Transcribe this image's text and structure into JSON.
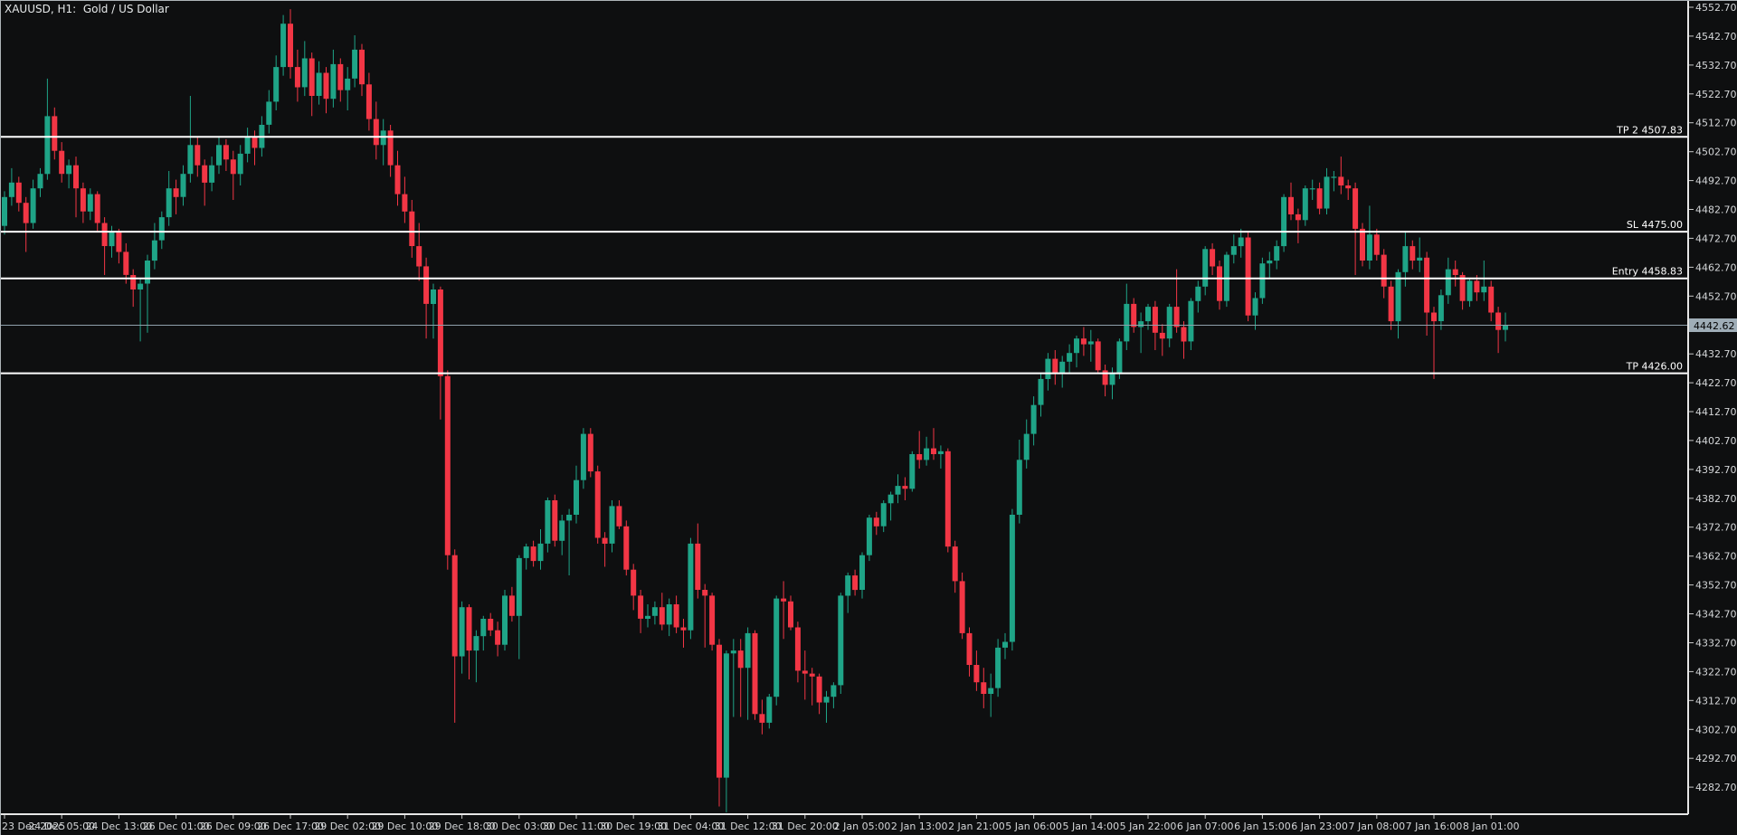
{
  "header": {
    "title": "XAUUSD, H1:  Gold / US Dollar"
  },
  "colors": {
    "background": "#0e0f10",
    "bull": "#1fa487",
    "bear": "#f23645",
    "level_line": "#ffffff",
    "level_text": "#ffffff",
    "current_line": "#8fa0ab",
    "current_badge_bg": "#9fadb7",
    "current_badge_text": "#000000",
    "axis_text": "#d4d6d8",
    "axis_tick": "#c8c8c8",
    "separator": "#e6e6e6",
    "window_border": "#aeb4b8"
  },
  "current_price": {
    "value": 4442.62,
    "label": "4442.62"
  },
  "price_axis": {
    "ticks": [
      4552.7,
      4542.7,
      4532.7,
      4522.7,
      4512.7,
      4502.7,
      4492.7,
      4482.7,
      4472.7,
      4462.7,
      4452.7,
      4442.7,
      4432.7,
      4422.7,
      4412.7,
      4402.7,
      4392.7,
      4382.7,
      4372.7,
      4362.7,
      4352.7,
      4342.7,
      4332.7,
      4322.7,
      4312.7,
      4302.7,
      4292.7,
      4282.7
    ]
  },
  "time_axis": {
    "labels": [
      "23 Dec 2025",
      "24 Dec 05:00",
      "24 Dec 13:00",
      "26 Dec 01:00",
      "26 Dec 09:00",
      "26 Dec 17:00",
      "29 Dec 02:00",
      "29 Dec 10:00",
      "29 Dec 18:00",
      "30 Dec 03:00",
      "30 Dec 11:00",
      "30 Dec 19:00",
      "31 Dec 04:00",
      "31 Dec 12:00",
      "31 Dec 20:00",
      "2 Jan 05:00",
      "2 Jan 13:00",
      "2 Jan 21:00",
      "5 Jan 06:00",
      "5 Jan 14:00",
      "5 Jan 22:00",
      "6 Jan 07:00",
      "6 Jan 15:00",
      "6 Jan 23:00",
      "7 Jan 08:00",
      "7 Jan 16:00",
      "8 Jan 01:00"
    ]
  },
  "chart_data": {
    "type": "candlestick",
    "symbol": "XAUUSD",
    "timeframe": "H1",
    "description": "Gold / US Dollar",
    "title": "XAUUSD, H1:  Gold / US Dollar",
    "ylim": [
      4270,
      4556
    ],
    "grid": false,
    "levels": [
      {
        "name": "TP 2",
        "price": 4507.83,
        "label": "TP 2 4507.83"
      },
      {
        "name": "SL",
        "price": 4475.0,
        "label": "SL 4475.00"
      },
      {
        "name": "Entry",
        "price": 4458.83,
        "label": "Entry 4458.83"
      },
      {
        "name": "TP",
        "price": 4426.0,
        "label": "TP 4426.00"
      }
    ],
    "current_price": 4442.62,
    "candles": [
      [
        4477,
        4489,
        4474,
        4487
      ],
      [
        4487,
        4497,
        4484,
        4492
      ],
      [
        4492,
        4494,
        4482,
        4485
      ],
      [
        4485,
        4487,
        4468,
        4478
      ],
      [
        4478,
        4493,
        4476,
        4490
      ],
      [
        4490,
        4497,
        4487,
        4495
      ],
      [
        4495,
        4528,
        4493,
        4515
      ],
      [
        4515,
        4518,
        4500,
        4503
      ],
      [
        4503,
        4506,
        4492,
        4495
      ],
      [
        4495,
        4500,
        4490,
        4498
      ],
      [
        4498,
        4501,
        4480,
        4490
      ],
      [
        4490,
        4492,
        4478,
        4482
      ],
      [
        4482,
        4490,
        4479,
        4488
      ],
      [
        4488,
        4489,
        4475,
        4478
      ],
      [
        4478,
        4480,
        4460,
        4470
      ],
      [
        4470,
        4477,
        4466,
        4475
      ],
      [
        4475,
        4476,
        4464,
        4468
      ],
      [
        4468,
        4471,
        4457,
        4460
      ],
      [
        4460,
        4462,
        4449,
        4455
      ],
      [
        4455,
        4459,
        4437,
        4457
      ],
      [
        4457,
        4467,
        4440,
        4465
      ],
      [
        4465,
        4478,
        4462,
        4472
      ],
      [
        4472,
        4482,
        4469,
        4480
      ],
      [
        4480,
        4496,
        4477,
        4490
      ],
      [
        4490,
        4493,
        4481,
        4487
      ],
      [
        4487,
        4498,
        4484,
        4495
      ],
      [
        4495,
        4522,
        4492,
        4505
      ],
      [
        4505,
        4508,
        4494,
        4498
      ],
      [
        4498,
        4500,
        4484,
        4492
      ],
      [
        4492,
        4501,
        4489,
        4498
      ],
      [
        4498,
        4508,
        4495,
        4505
      ],
      [
        4505,
        4507,
        4496,
        4500
      ],
      [
        4500,
        4503,
        4486,
        4495
      ],
      [
        4495,
        4505,
        4491,
        4502
      ],
      [
        4502,
        4511,
        4499,
        4508
      ],
      [
        4508,
        4510,
        4498,
        4504
      ],
      [
        4504,
        4515,
        4501,
        4512
      ],
      [
        4512,
        4524,
        4509,
        4520
      ],
      [
        4520,
        4536,
        4517,
        4532
      ],
      [
        4532,
        4550,
        4529,
        4547
      ],
      [
        4547,
        4552,
        4528,
        4532
      ],
      [
        4532,
        4538,
        4520,
        4525
      ],
      [
        4525,
        4541,
        4522,
        4535
      ],
      [
        4535,
        4537,
        4515,
        4522
      ],
      [
        4522,
        4534,
        4519,
        4530
      ],
      [
        4530,
        4532,
        4516,
        4521
      ],
      [
        4521,
        4538,
        4518,
        4533
      ],
      [
        4533,
        4535,
        4520,
        4524
      ],
      [
        4524,
        4532,
        4517,
        4528
      ],
      [
        4528,
        4543,
        4525,
        4538
      ],
      [
        4538,
        4540,
        4522,
        4526
      ],
      [
        4526,
        4530,
        4510,
        4514
      ],
      [
        4514,
        4520,
        4500,
        4505
      ],
      [
        4505,
        4514,
        4498,
        4510
      ],
      [
        4510,
        4512,
        4494,
        4498
      ],
      [
        4498,
        4503,
        4484,
        4488
      ],
      [
        4488,
        4494,
        4478,
        4482
      ],
      [
        4482,
        4486,
        4466,
        4470
      ],
      [
        4470,
        4478,
        4458,
        4463
      ],
      [
        4463,
        4466,
        4438,
        4450
      ],
      [
        4450,
        4457,
        4438,
        4455
      ],
      [
        4455,
        4456,
        4410,
        4425
      ],
      [
        4425,
        4427,
        4358,
        4363
      ],
      [
        4363,
        4365,
        4305,
        4328
      ],
      [
        4328,
        4347,
        4322,
        4345
      ],
      [
        4345,
        4346,
        4320,
        4330
      ],
      [
        4330,
        4337,
        4319,
        4335
      ],
      [
        4335,
        4342,
        4330,
        4341
      ],
      [
        4341,
        4343,
        4335,
        4337
      ],
      [
        4337,
        4340,
        4328,
        4332
      ],
      [
        4332,
        4351,
        4330,
        4349
      ],
      [
        4349,
        4352,
        4340,
        4342
      ],
      [
        4342,
        4363,
        4327,
        4362
      ],
      [
        4362,
        4367,
        4358,
        4366
      ],
      [
        4366,
        4368,
        4359,
        4361
      ],
      [
        4361,
        4372,
        4358,
        4367
      ],
      [
        4367,
        4383,
        4364,
        4382
      ],
      [
        4382,
        4384,
        4366,
        4368
      ],
      [
        4368,
        4377,
        4363,
        4375
      ],
      [
        4375,
        4379,
        4356,
        4377
      ],
      [
        4377,
        4394,
        4374,
        4389
      ],
      [
        4389,
        4407,
        4386,
        4405
      ],
      [
        4405,
        4407,
        4390,
        4392
      ],
      [
        4392,
        4394,
        4367,
        4369
      ],
      [
        4369,
        4371,
        4359,
        4367
      ],
      [
        4367,
        4382,
        4364,
        4380
      ],
      [
        4380,
        4382,
        4372,
        4373
      ],
      [
        4373,
        4375,
        4356,
        4358
      ],
      [
        4358,
        4360,
        4344,
        4349
      ],
      [
        4349,
        4351,
        4336,
        4341
      ],
      [
        4341,
        4346,
        4338,
        4342
      ],
      [
        4342,
        4347,
        4339,
        4345
      ],
      [
        4345,
        4350,
        4337,
        4339
      ],
      [
        4339,
        4348,
        4335,
        4346
      ],
      [
        4346,
        4349,
        4336,
        4338
      ],
      [
        4338,
        4341,
        4331,
        4337
      ],
      [
        4337,
        4369,
        4334,
        4367
      ],
      [
        4367,
        4374,
        4348,
        4351
      ],
      [
        4351,
        4353,
        4331,
        4349
      ],
      [
        4349,
        4350,
        4330,
        4332
      ],
      [
        4332,
        4334,
        4276,
        4286
      ],
      [
        4286,
        4330,
        4274,
        4329
      ],
      [
        4329,
        4334,
        4307,
        4330
      ],
      [
        4330,
        4334,
        4307,
        4324
      ],
      [
        4324,
        4338,
        4306,
        4336
      ],
      [
        4336,
        4337,
        4306,
        4308
      ],
      [
        4308,
        4313,
        4301,
        4305
      ],
      [
        4305,
        4315,
        4303,
        4314
      ],
      [
        4314,
        4349,
        4311,
        4348
      ],
      [
        4348,
        4354,
        4334,
        4347
      ],
      [
        4347,
        4349,
        4337,
        4338
      ],
      [
        4338,
        4340,
        4319,
        4323
      ],
      [
        4323,
        4330,
        4313,
        4322
      ],
      [
        4322,
        4324,
        4311,
        4321
      ],
      [
        4321,
        4322,
        4308,
        4312
      ],
      [
        4312,
        4316,
        4305,
        4314
      ],
      [
        4314,
        4319,
        4310,
        4318
      ],
      [
        4318,
        4350,
        4315,
        4349
      ],
      [
        4349,
        4357,
        4343,
        4356
      ],
      [
        4356,
        4358,
        4349,
        4351
      ],
      [
        4351,
        4364,
        4348,
        4363
      ],
      [
        4363,
        4377,
        4361,
        4376
      ],
      [
        4376,
        4378,
        4370,
        4373
      ],
      [
        4373,
        4382,
        4371,
        4381
      ],
      [
        4381,
        4385,
        4375,
        4384
      ],
      [
        4384,
        4391,
        4381,
        4387
      ],
      [
        4387,
        4390,
        4382,
        4386
      ],
      [
        4386,
        4399,
        4385,
        4398
      ],
      [
        4398,
        4406,
        4393,
        4396
      ],
      [
        4396,
        4404,
        4394,
        4400
      ],
      [
        4400,
        4407,
        4396,
        4398
      ],
      [
        4398,
        4401,
        4393,
        4399
      ],
      [
        4399,
        4400,
        4364,
        4366
      ],
      [
        4366,
        4368,
        4350,
        4354
      ],
      [
        4354,
        4357,
        4334,
        4336
      ],
      [
        4336,
        4338,
        4321,
        4325
      ],
      [
        4325,
        4330,
        4316,
        4319
      ],
      [
        4319,
        4324,
        4310,
        4315
      ],
      [
        4315,
        4322,
        4307,
        4317
      ],
      [
        4317,
        4334,
        4314,
        4331
      ],
      [
        4331,
        4336,
        4327,
        4333
      ],
      [
        4333,
        4379,
        4330,
        4377
      ],
      [
        4377,
        4403,
        4374,
        4396
      ],
      [
        4396,
        4410,
        4393,
        4405
      ],
      [
        4405,
        4418,
        4401,
        4415
      ],
      [
        4415,
        4426,
        4411,
        4424
      ],
      [
        4424,
        4433,
        4420,
        4431
      ],
      [
        4431,
        4434,
        4422,
        4426
      ],
      [
        4426,
        4432,
        4421,
        4430
      ],
      [
        4430,
        4436,
        4426,
        4433
      ],
      [
        4433,
        4439,
        4428,
        4438
      ],
      [
        4438,
        4442,
        4432,
        4436
      ],
      [
        4436,
        4441,
        4430,
        4437
      ],
      [
        4437,
        4438,
        4426,
        4427
      ],
      [
        4427,
        4429,
        4418,
        4422
      ],
      [
        4422,
        4428,
        4417,
        4426
      ],
      [
        4426,
        4438,
        4424,
        4437
      ],
      [
        4437,
        4457,
        4434,
        4450
      ],
      [
        4450,
        4452,
        4440,
        4442
      ],
      [
        4442,
        4447,
        4433,
        4444
      ],
      [
        4444,
        4450,
        4441,
        4449
      ],
      [
        4449,
        4451,
        4434,
        4440
      ],
      [
        4440,
        4443,
        4432,
        4438
      ],
      [
        4438,
        4450,
        4435,
        4449
      ],
      [
        4449,
        4462,
        4440,
        4442
      ],
      [
        4442,
        4444,
        4431,
        4437
      ],
      [
        4437,
        4452,
        4434,
        4451
      ],
      [
        4451,
        4458,
        4447,
        4456
      ],
      [
        4456,
        4470,
        4453,
        4469
      ],
      [
        4469,
        4471,
        4460,
        4463
      ],
      [
        4463,
        4465,
        4448,
        4451
      ],
      [
        4451,
        4468,
        4449,
        4467
      ],
      [
        4467,
        4474,
        4464,
        4470
      ],
      [
        4470,
        4476,
        4466,
        4473
      ],
      [
        4473,
        4475,
        4444,
        4446
      ],
      [
        4446,
        4454,
        4441,
        4452
      ],
      [
        4452,
        4466,
        4450,
        4464
      ],
      [
        4464,
        4468,
        4459,
        4465
      ],
      [
        4465,
        4472,
        4462,
        4470
      ],
      [
        4470,
        4488,
        4468,
        4487
      ],
      [
        4487,
        4492,
        4479,
        4481
      ],
      [
        4481,
        4483,
        4471,
        4479
      ],
      [
        4479,
        4491,
        4477,
        4490
      ],
      [
        4490,
        4493,
        4486,
        4490
      ],
      [
        4490,
        4492,
        4481,
        4483
      ],
      [
        4483,
        4497,
        4481,
        4494
      ],
      [
        4494,
        4496,
        4489,
        4494
      ],
      [
        4494,
        4501,
        4488,
        4491
      ],
      [
        4491,
        4493,
        4486,
        4490
      ],
      [
        4490,
        4492,
        4460,
        4476
      ],
      [
        4476,
        4478,
        4463,
        4465
      ],
      [
        4465,
        4484,
        4462,
        4474
      ],
      [
        4474,
        4476,
        4465,
        4467
      ],
      [
        4467,
        4469,
        4452,
        4456
      ],
      [
        4456,
        4458,
        4441,
        4444
      ],
      [
        4444,
        4462,
        4438,
        4461
      ],
      [
        4461,
        4475,
        4456,
        4470
      ],
      [
        4470,
        4472,
        4462,
        4465
      ],
      [
        4465,
        4473,
        4461,
        4466
      ],
      [
        4466,
        4468,
        4439,
        4447
      ],
      [
        4447,
        4449,
        4424,
        4444
      ],
      [
        4444,
        4455,
        4441,
        4453
      ],
      [
        4453,
        4466,
        4450,
        4462
      ],
      [
        4462,
        4465,
        4456,
        4460
      ],
      [
        4460,
        4461,
        4448,
        4451
      ],
      [
        4451,
        4459,
        4449,
        4458
      ],
      [
        4458,
        4460,
        4451,
        4454
      ],
      [
        4454,
        4465,
        4451,
        4456
      ],
      [
        4456,
        4458,
        4444,
        4447
      ],
      [
        4447,
        4449,
        4433,
        4441
      ],
      [
        4441,
        4447,
        4437,
        4442.6
      ]
    ]
  }
}
